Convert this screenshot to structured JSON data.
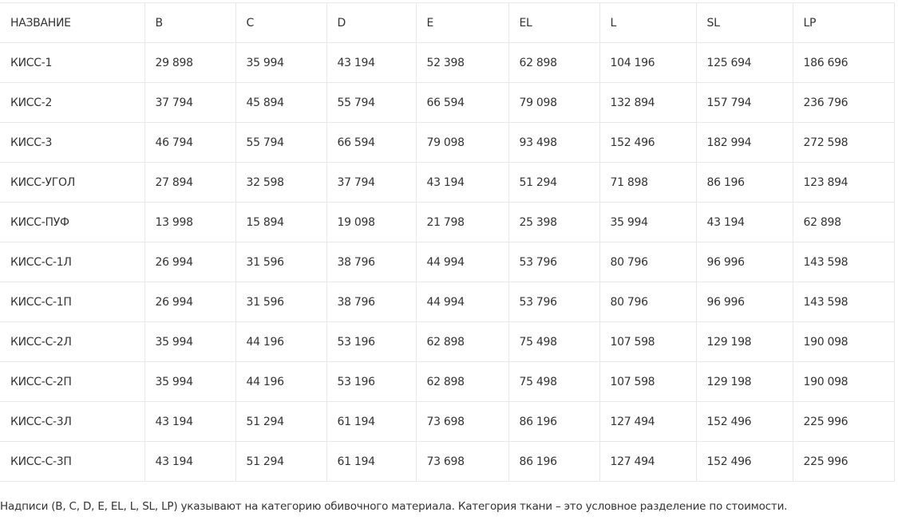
{
  "table": {
    "header": [
      "НАЗВАНИЕ",
      "B",
      "C",
      "D",
      "E",
      "EL",
      "L",
      "SL",
      "LP"
    ],
    "rows": [
      [
        "КИСС-1",
        "29 898",
        "35 994",
        "43 194",
        "52 398",
        "62 898",
        "104 196",
        "125 694",
        "186 696"
      ],
      [
        "КИСС-2",
        "37 794",
        "45 894",
        "55 794",
        "66 594",
        "79 098",
        "132 894",
        "157 794",
        "236 796"
      ],
      [
        "КИСС-3",
        "46 794",
        "55 794",
        "66 594",
        "79 098",
        "93 498",
        "152 496",
        "182 994",
        "272 598"
      ],
      [
        "КИСС-УГОЛ",
        "27 894",
        "32 598",
        "37 794",
        "43 194",
        "51 294",
        "71 898",
        "86 196",
        "123 894"
      ],
      [
        "КИСС-ПУФ",
        "13 998",
        "15 894",
        "19 098",
        "21 798",
        "25 398",
        "35 994",
        "43 194",
        "62 898"
      ],
      [
        "КИСС-С-1Л",
        "26 994",
        "31 596",
        "38 796",
        "44 994",
        "53 796",
        "80 796",
        "96 996",
        "143 598"
      ],
      [
        "КИСС-С-1П",
        "26 994",
        "31 596",
        "38 796",
        "44 994",
        "53 796",
        "80 796",
        "96 996",
        "143 598"
      ],
      [
        "КИСС-С-2Л",
        "35 994",
        "44 196",
        "53 196",
        "62 898",
        "75 498",
        "107 598",
        "129 198",
        "190 098"
      ],
      [
        "КИСС-С-2П",
        "35 994",
        "44 196",
        "53 196",
        "62 898",
        "75 498",
        "107 598",
        "129 198",
        "190 098"
      ],
      [
        "КИСС-С-3Л",
        "43 194",
        "51 294",
        "61 194",
        "73 698",
        "86 196",
        "127 494",
        "152 496",
        "225 996"
      ],
      [
        "КИСС-С-3П",
        "43 194",
        "51 294",
        "61 194",
        "73 698",
        "86 196",
        "127 494",
        "152 496",
        "225 996"
      ]
    ]
  },
  "note": "Надписи (B, C, D, E, EL, L, SL, LP) указывают на категорию обивочного материала. Категория ткани – это условное разделение по стоимости."
}
